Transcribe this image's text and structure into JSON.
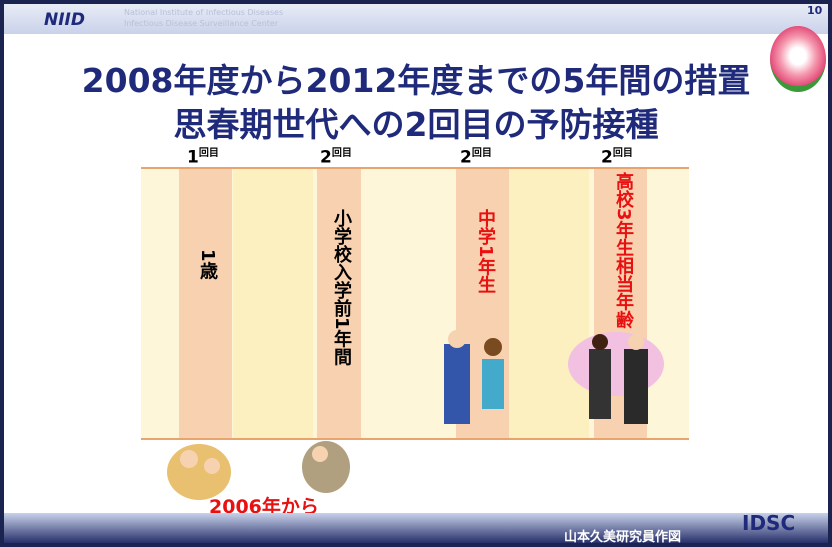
{
  "header": {
    "logo": "NIID",
    "institute": "National Institute of Infectious Diseases",
    "center": "Infectious Disease Surveillance Center",
    "page": "10"
  },
  "title": {
    "line1": "2008年度から2012年度までの5年間の措置",
    "line2": "思春期世代への2回目の予防接種"
  },
  "columns": [
    {
      "dose": "1",
      "dose_suffix": "回目",
      "label": "1歳"
    },
    {
      "dose": "2",
      "dose_suffix": "回目",
      "label": "小学校入学前1年間"
    },
    {
      "dose": "2",
      "dose_suffix": "回目",
      "label": "中学1年生"
    },
    {
      "dose": "2",
      "dose_suffix": "回目",
      "label": "高校3年生相当年齢"
    }
  ],
  "footer": {
    "since": "2006年から",
    "credit": "山本久美研究員作図",
    "logo": "IDSC"
  }
}
